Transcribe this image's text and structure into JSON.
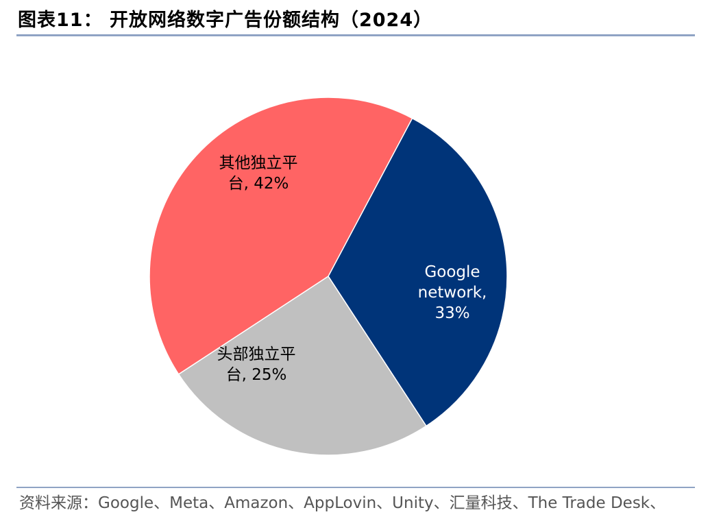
{
  "title": "图表11：  开放网络数字广告份额结构（2024）",
  "source": "资料来源：Google、Meta、Amazon、AppLovin、Unity、汇量科技、The Trade Desk、",
  "chart_data": {
    "type": "pie",
    "title": "",
    "categories": [
      "Google network",
      "头部独立平台",
      "其他独立平台"
    ],
    "values": [
      33,
      25,
      42
    ],
    "unit": "%",
    "labels": [
      [
        "Google",
        "network,",
        "33%"
      ],
      [
        "头部独立平",
        "台, 25%"
      ],
      [
        "其他独立平",
        "台, 42%"
      ]
    ],
    "colors": [
      "#003479",
      "#C0C0C0",
      "#FF6464"
    ],
    "label_colors": [
      "#FFFFFF",
      "#000000",
      "#000000"
    ],
    "start_angle_deg": 28,
    "direction": "clockwise",
    "legend": "none"
  }
}
